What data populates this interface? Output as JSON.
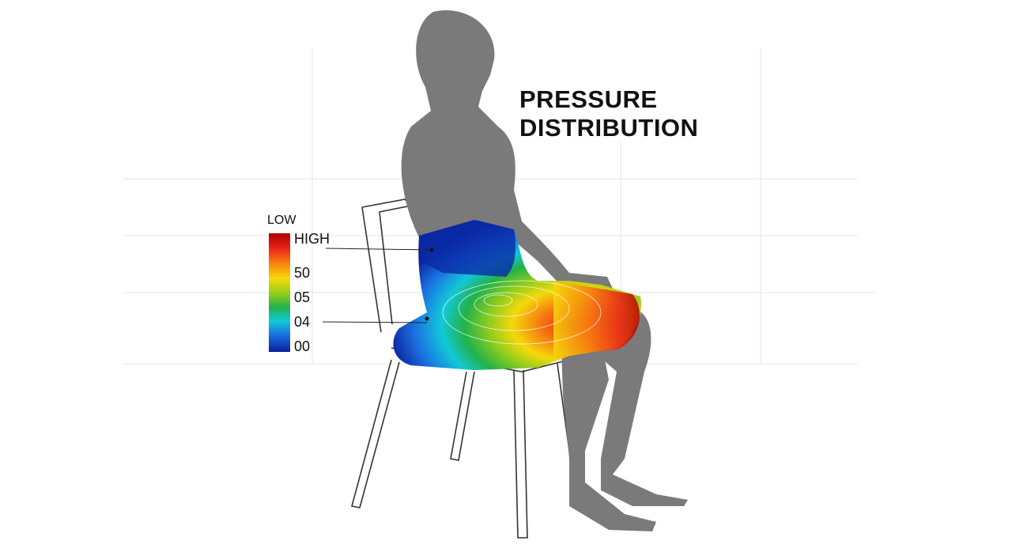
{
  "title": {
    "line1": "PRESSURE",
    "line2": "DISTRIBUTION"
  },
  "legend": {
    "top_label": "LOW",
    "ticks": [
      "HIGH",
      "50",
      "05",
      "04",
      "00"
    ],
    "colors": [
      "#b00000",
      "#e8201a",
      "#f77f10",
      "#f5d90a",
      "#8ccc1e",
      "#22b24a",
      "#12c8d8",
      "#1a6fe0",
      "#0a1e9a"
    ]
  },
  "colors": {
    "figure": "#7a7a7a",
    "grid": "#e6e6e6",
    "chair": "#333333"
  }
}
